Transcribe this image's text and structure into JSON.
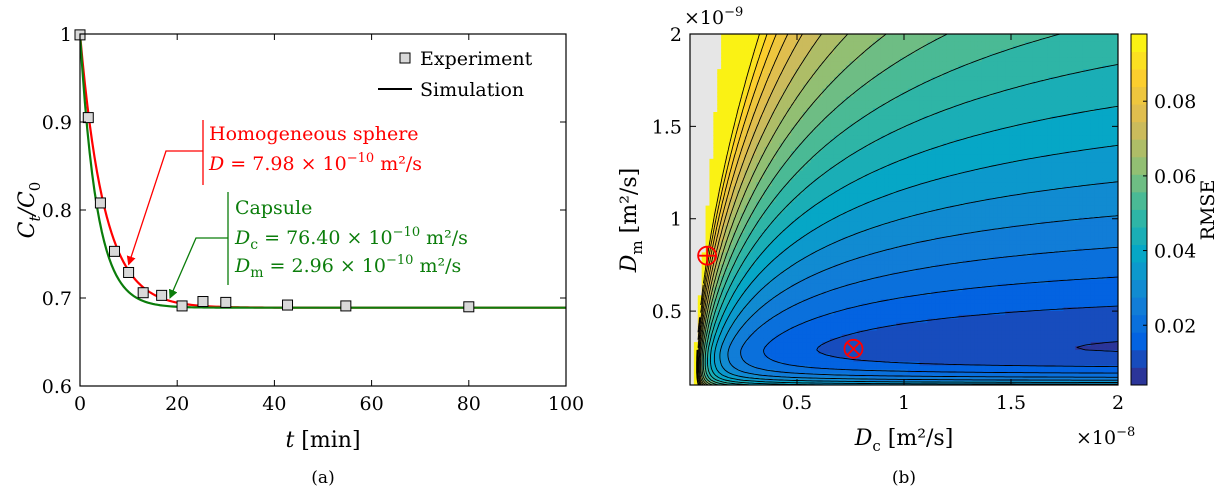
{
  "chart_data": [
    {
      "type": "line",
      "xlabel_var": "t",
      "xlabel_unit": "[min]",
      "ylabel_main": "C",
      "ylabel_sub1": "t",
      "ylabel_over": "/C",
      "ylabel_sub2": "0",
      "xlim": [
        0,
        100
      ],
      "ylim": [
        0.6,
        1.0
      ],
      "x_ticks": [
        0,
        20,
        40,
        60,
        80,
        100
      ],
      "x_tick_labels": [
        "0",
        "20",
        "40",
        "60",
        "80",
        "100"
      ],
      "y_ticks": [
        0.6,
        0.7,
        0.8,
        0.9,
        1.0
      ],
      "y_tick_labels": [
        "0.6",
        "0.7",
        "0.8",
        "0.9",
        "1"
      ],
      "legend": {
        "placement": "top-right",
        "experiment": "Experiment",
        "simulation": "Simulation"
      },
      "experiment": {
        "x": [
          0,
          1.7,
          4.2,
          7.1,
          10.0,
          13.0,
          16.8,
          21.0,
          25.3,
          30.0,
          42.7,
          54.7,
          80.0
        ],
        "y": [
          0.999,
          0.905,
          0.808,
          0.753,
          0.729,
          0.706,
          0.703,
          0.691,
          0.696,
          0.695,
          0.692,
          0.691,
          0.69
        ]
      },
      "series": [
        {
          "name": "Homogeneous sphere",
          "color": "#ff0000",
          "model": {
            "c_inf": 0.689,
            "c_0": 1.0,
            "tau": 5.0,
            "n_steps": 200
          }
        },
        {
          "name": "Capsule",
          "color": "#0b7d0b",
          "model": {
            "c_inf": 0.689,
            "c_0": 1.0,
            "tau": 3.5,
            "n_steps": 200
          }
        }
      ],
      "annotations": {
        "sphere_line1": "Homogeneous sphere",
        "sphere_line2_var": "D",
        "sphere_line2_val": " = 7.98 × 10",
        "sphere_line2_exp": "−10",
        "sphere_line2_unit": " m²/s",
        "sphere_arrow_target": {
          "x": 10.0,
          "y": 0.738
        },
        "capsule_line1": "Capsule",
        "capsule_line2_var": "D",
        "capsule_line2_sub": "c",
        "capsule_line2_val": " = 76.40 × 10",
        "capsule_line2_exp": "−10",
        "capsule_line2_unit": " m²/s",
        "capsule_line3_var": "D",
        "capsule_line3_sub": "m",
        "capsule_line3_val": " = 2.96 × 10",
        "capsule_line3_exp": "−10",
        "capsule_line3_unit": " m²/s",
        "capsule_arrow_target": {
          "x": 18.5,
          "y": 0.7
        }
      },
      "caption": "(a)"
    },
    {
      "type": "heatmap",
      "xlabel_var": "D",
      "xlabel_sub": "c",
      "xlabel_unit": " [m²/s]",
      "ylabel_var": "D",
      "ylabel_sub": "m",
      "ylabel_unit": " [m²/s]",
      "xlim": [
        0.0,
        2.0
      ],
      "ylim": [
        0.1,
        2.0
      ],
      "x_scale_note": "×10",
      "x_scale_exp": "−8",
      "y_scale_note": "×10",
      "y_scale_exp": "−9",
      "x_ticks": [
        0.5,
        1.0,
        1.5,
        2.0
      ],
      "x_tick_labels": [
        "0.5",
        "1",
        "1.5",
        "2"
      ],
      "y_ticks": [
        0.5,
        1.0,
        1.5,
        2.0
      ],
      "y_tick_labels": [
        "0.5",
        "1",
        "1.5",
        "2"
      ],
      "colorbar": {
        "label": "RMSE",
        "range": [
          0.004,
          0.098
        ],
        "ticks": [
          0.02,
          0.04,
          0.06,
          0.08
        ],
        "tick_labels": [
          "0.02",
          "0.04",
          "0.06",
          "0.08"
        ],
        "levels": 20
      },
      "invalid_region_color": "#e6e6e6",
      "markers": [
        {
          "name": "homogeneous-sphere-marker",
          "symbol": "circle-plus",
          "x": 0.08,
          "y": 0.8,
          "color": "#ff0000"
        },
        {
          "name": "capsule-marker",
          "symbol": "circle-times",
          "x": 0.764,
          "y": 0.296,
          "color": "#ff0000"
        }
      ],
      "caption": "(b)"
    }
  ]
}
